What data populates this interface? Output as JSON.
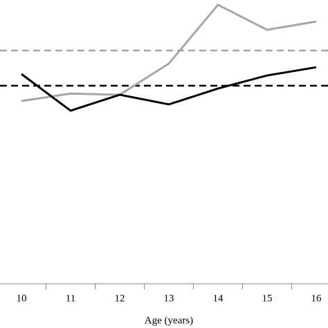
{
  "chart_data": {
    "type": "line",
    "x_label": "Age (years)",
    "categories": [
      "10",
      "11",
      "12",
      "13",
      "14",
      "15",
      "16"
    ],
    "series": [
      {
        "color": "#a6a6a6",
        "values": [
          64.4,
          67,
          66.6,
          77.6,
          98.3,
          89.5,
          92.4
        ]
      },
      {
        "color": "#000000",
        "values": [
          73.9,
          61,
          66.6,
          63.2,
          68.8,
          73.4,
          76.3
        ]
      }
    ],
    "reference_lines": [
      {
        "value": 82.2,
        "color": "#a6a6a6",
        "dashed": true
      },
      {
        "value": 69.8,
        "color": "#000000",
        "dashed": true
      }
    ],
    "ylim": [
      0,
      100
    ]
  }
}
